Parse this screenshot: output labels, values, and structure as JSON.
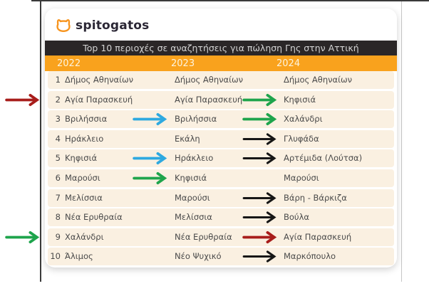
{
  "logo": {
    "brand": "spitogatos",
    "icon": "cat-icon",
    "icon_color": "#f7941e",
    "text_color": "#2b2735"
  },
  "table": {
    "title": "Top 10 περιοχές σε αναζητήσεις για πώληση Γης στην Αττική",
    "title_bar_bg": "#2a2627",
    "title_text_color": "#d4d4d4",
    "year_bar_bg": "#f9a21d",
    "year_text_color": "#fdf3dc",
    "row_bg": "#faf0e1",
    "row_text_color": "#4a4a4a",
    "years": [
      "2022",
      "2023",
      "2024"
    ],
    "arrow_colors": {
      "green": "#1ea44c",
      "blue": "#2ea9e0",
      "black": "#161616",
      "red": "#a81d1b"
    },
    "rows": [
      {
        "rank": 1,
        "y2022": "Δήμος Αθηναίων",
        "y2023": "Δήμος Αθηναίων",
        "y2024": "Δήμος Αθηναίων",
        "arrow_2022_2023": null,
        "arrow_2023_2024": null,
        "external_left_arrow": null
      },
      {
        "rank": 2,
        "y2022": "Αγία Παρασκευή",
        "y2023": "Αγία Παρασκευή",
        "y2024": "Κηφισιά",
        "arrow_2022_2023": null,
        "arrow_2023_2024": "green",
        "external_left_arrow": "red"
      },
      {
        "rank": 3,
        "y2022": "Βριλήσσια",
        "y2023": "Βριλήσσια",
        "y2024": "Χαλάνδρι",
        "arrow_2022_2023": "blue",
        "arrow_2023_2024": "green",
        "external_left_arrow": null
      },
      {
        "rank": 4,
        "y2022": "Ηράκλειο",
        "y2023": "Εκάλη",
        "y2024": "Γλυφάδα",
        "arrow_2022_2023": null,
        "arrow_2023_2024": "black",
        "external_left_arrow": null
      },
      {
        "rank": 5,
        "y2022": "Κηφισιά",
        "y2023": "Ηράκλειο",
        "y2024": "Αρτέμιδα (Λούτσα)",
        "arrow_2022_2023": "blue",
        "arrow_2023_2024": "black",
        "external_left_arrow": null
      },
      {
        "rank": 6,
        "y2022": "Μαρούσι",
        "y2023": "Κηφισιά",
        "y2024": "Μαρούσι",
        "arrow_2022_2023": "green",
        "arrow_2023_2024": null,
        "external_left_arrow": null
      },
      {
        "rank": 7,
        "y2022": "Μελίσσια",
        "y2023": "Μαρούσι",
        "y2024": "Βάρη - Βάρκιζα",
        "arrow_2022_2023": null,
        "arrow_2023_2024": "black",
        "external_left_arrow": null
      },
      {
        "rank": 8,
        "y2022": "Νέα Ερυθραία",
        "y2023": "Μελίσσια",
        "y2024": "Βούλα",
        "arrow_2022_2023": null,
        "arrow_2023_2024": "black",
        "external_left_arrow": null
      },
      {
        "rank": 9,
        "y2022": "Χαλάνδρι",
        "y2023": "Νέα Ερυθραία",
        "y2024": "Αγία Παρασκευή",
        "arrow_2022_2023": null,
        "arrow_2023_2024": "red",
        "external_left_arrow": "green"
      },
      {
        "rank": 10,
        "y2022": "Άλιμος",
        "y2023": "Νέο Ψυχικό",
        "y2024": "Μαρκόπουλο",
        "arrow_2022_2023": null,
        "arrow_2023_2024": "black",
        "external_left_arrow": null
      }
    ]
  },
  "chart_data": {
    "type": "table",
    "title": "Top 10 περιοχές σε αναζητήσεις για πώληση Γης στην Αττική",
    "columns": [
      "Rank",
      "2022",
      "2023",
      "2024"
    ],
    "rows": [
      [
        1,
        "Δήμος Αθηναίων",
        "Δήμος Αθηναίων",
        "Δήμος Αθηναίων"
      ],
      [
        2,
        "Αγία Παρασκευή",
        "Αγία Παρασκευή",
        "Κηφισιά"
      ],
      [
        3,
        "Βριλήσσια",
        "Βριλήσσια",
        "Χαλάνδρι"
      ],
      [
        4,
        "Ηράκλειο",
        "Εκάλη",
        "Γλυφάδα"
      ],
      [
        5,
        "Κηφισιά",
        "Ηράκλειο",
        "Αρτέμιδα (Λούτσα)"
      ],
      [
        6,
        "Μαρούσι",
        "Κηφισιά",
        "Μαρούσι"
      ],
      [
        7,
        "Μελίσσια",
        "Μαρούσι",
        "Βάρη - Βάρκιζα"
      ],
      [
        8,
        "Νέα Ερυθραία",
        "Μελίσσια",
        "Βούλα"
      ],
      [
        9,
        "Χαλάνδρι",
        "Νέα Ερυθραία",
        "Αγία Παρασκευή"
      ],
      [
        10,
        "Άλιμος",
        "Νέο Ψυχικό",
        "Μαρκόπουλο"
      ]
    ],
    "annotations": [
      "green arrow 2023→2024 on rank 2",
      "blue arrow 2022→2023 and green arrow 2023→2024 on rank 3",
      "black arrow 2023→2024 on rank 4",
      "blue arrow 2022→2023 and black arrow 2023→2024 on rank 5",
      "green arrow 2022→2023 on rank 6",
      "black arrow 2023→2024 on ranks 7, 8, 10",
      "dark-red arrow 2023→2024 on rank 9",
      "external red arrow pointing at rank 2 row",
      "external green arrow pointing at rank 9 row"
    ]
  }
}
